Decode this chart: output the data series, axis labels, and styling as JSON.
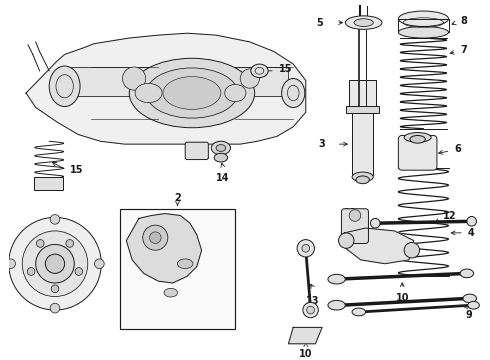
{
  "bg_color": "#ffffff",
  "line_color": "#1a1a1a",
  "fig_width": 4.9,
  "fig_height": 3.6,
  "dpi": 100,
  "label_fontsize": 7.0
}
